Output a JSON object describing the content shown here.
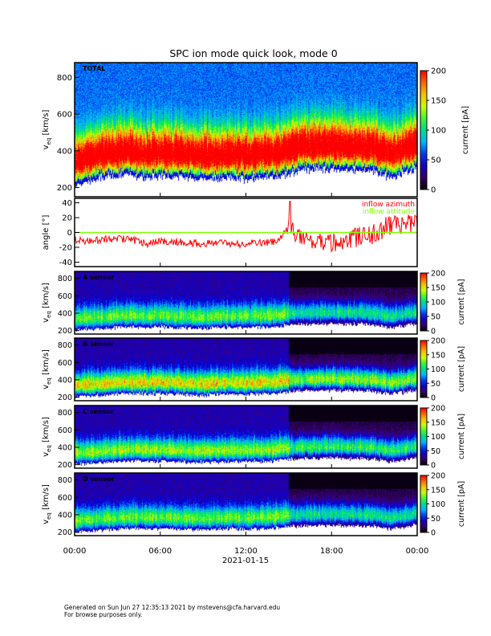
{
  "title": "SPC ion mode quick look, mode 0",
  "footer": {
    "generated": "Generated on Sun Jun 27 12:35:13 2021 by mstevens@cfa.harvard.edu",
    "note": "For browse purposes only."
  },
  "chart_data": [
    {
      "type": "heatmap",
      "panel_label": "TOTAL",
      "ylabel": "v_eq [km/s]",
      "ylim": [
        150,
        880
      ],
      "yticks": [
        "200",
        "400",
        "600",
        "800"
      ],
      "colorbar": {
        "label": "current [pA]",
        "range": [
          0,
          200
        ],
        "ticks": [
          "0",
          "50",
          "100",
          "150",
          "200"
        ]
      },
      "peak_velocity_hourly": [
        340,
        360,
        380,
        385,
        390,
        380,
        390,
        380,
        375,
        370,
        370,
        375,
        370,
        375,
        380,
        400,
        420,
        420,
        425,
        420,
        415,
        405,
        380,
        400,
        430
      ],
      "peak_current_level": 0.9
    },
    {
      "type": "line",
      "ylabel": "angle [°]",
      "ylim": [
        -46,
        46
      ],
      "yticks": [
        "-40",
        "-20",
        "0",
        "20",
        "40"
      ],
      "legend": [
        {
          "name": "inflow azimuth",
          "color": "#ff0000"
        },
        {
          "name": "inflow attitude",
          "color": "#80ff00"
        }
      ],
      "legend_position": "top-right",
      "series": [
        {
          "name": "inflow azimuth",
          "values_hourly": [
            -10,
            -12,
            -10,
            -8,
            -10,
            -15,
            -12,
            -12,
            -14,
            -15,
            -14,
            -16,
            -15,
            -14,
            -13,
            5,
            -8,
            -10,
            -12,
            -10,
            -5,
            -2,
            10,
            12,
            10
          ]
        },
        {
          "name": "inflow attitude",
          "values_hourly": [
            0,
            0,
            0,
            0,
            0,
            0,
            0,
            0,
            0,
            0,
            0,
            0,
            0,
            0,
            0,
            0,
            0,
            0,
            0,
            0,
            0,
            0,
            0,
            0,
            0
          ]
        }
      ]
    },
    {
      "type": "heatmap",
      "panel_label": "A sensor",
      "ylabel": "v_eq [km/s]",
      "ylim": [
        160,
        880
      ],
      "yticks": [
        "200",
        "400",
        "600",
        "800"
      ],
      "colorbar": {
        "label": "current [pA]",
        "range": [
          0,
          200
        ],
        "ticks": [
          "0",
          "50",
          "100",
          "150",
          "200"
        ]
      },
      "peak_velocity_hourly": [
        330,
        340,
        350,
        360,
        370,
        360,
        370,
        360,
        355,
        350,
        360,
        365,
        360,
        365,
        370,
        390,
        400,
        400,
        405,
        400,
        400,
        390,
        360,
        380,
        410
      ],
      "peak_current_level": 0.45
    },
    {
      "type": "heatmap",
      "panel_label": "B sensor",
      "ylabel": "v_eq [km/s]",
      "ylim": [
        160,
        880
      ],
      "yticks": [
        "200",
        "400",
        "600",
        "800"
      ],
      "colorbar": {
        "label": "current [pA]",
        "range": [
          0,
          200
        ],
        "ticks": [
          "0",
          "50",
          "100",
          "150",
          "200"
        ]
      },
      "peak_velocity_hourly": [
        330,
        340,
        350,
        360,
        370,
        360,
        370,
        360,
        355,
        350,
        360,
        365,
        360,
        365,
        370,
        390,
        400,
        400,
        405,
        400,
        400,
        390,
        360,
        380,
        410
      ],
      "peak_current_level": 0.6
    },
    {
      "type": "heatmap",
      "panel_label": "C sensor",
      "ylabel": "v_eq [km/s]",
      "ylim": [
        160,
        880
      ],
      "yticks": [
        "200",
        "400",
        "600",
        "800"
      ],
      "colorbar": {
        "label": "current [pA]",
        "range": [
          0,
          200
        ],
        "ticks": [
          "0",
          "50",
          "100",
          "150",
          "200"
        ]
      },
      "peak_velocity_hourly": [
        330,
        340,
        350,
        360,
        370,
        360,
        370,
        360,
        355,
        350,
        360,
        365,
        360,
        365,
        370,
        390,
        400,
        400,
        405,
        400,
        400,
        390,
        360,
        380,
        410
      ],
      "peak_current_level": 0.5
    },
    {
      "type": "heatmap",
      "panel_label": "D sensor",
      "ylabel": "v_eq [km/s]",
      "ylim": [
        160,
        880
      ],
      "yticks": [
        "200",
        "400",
        "600",
        "800"
      ],
      "colorbar": {
        "label": "current [pA]",
        "range": [
          0,
          200
        ],
        "ticks": [
          "0",
          "50",
          "100",
          "150",
          "200"
        ]
      },
      "peak_velocity_hourly": [
        330,
        340,
        350,
        360,
        370,
        360,
        370,
        360,
        355,
        350,
        360,
        365,
        360,
        365,
        370,
        390,
        400,
        400,
        405,
        400,
        400,
        390,
        360,
        380,
        410
      ],
      "peak_current_level": 0.45
    }
  ],
  "xaxis": {
    "range_hours": [
      0,
      24
    ],
    "ticks": [
      "00:00",
      "06:00",
      "12:00",
      "18:00",
      "00:00"
    ],
    "date": "2021-01-15"
  }
}
